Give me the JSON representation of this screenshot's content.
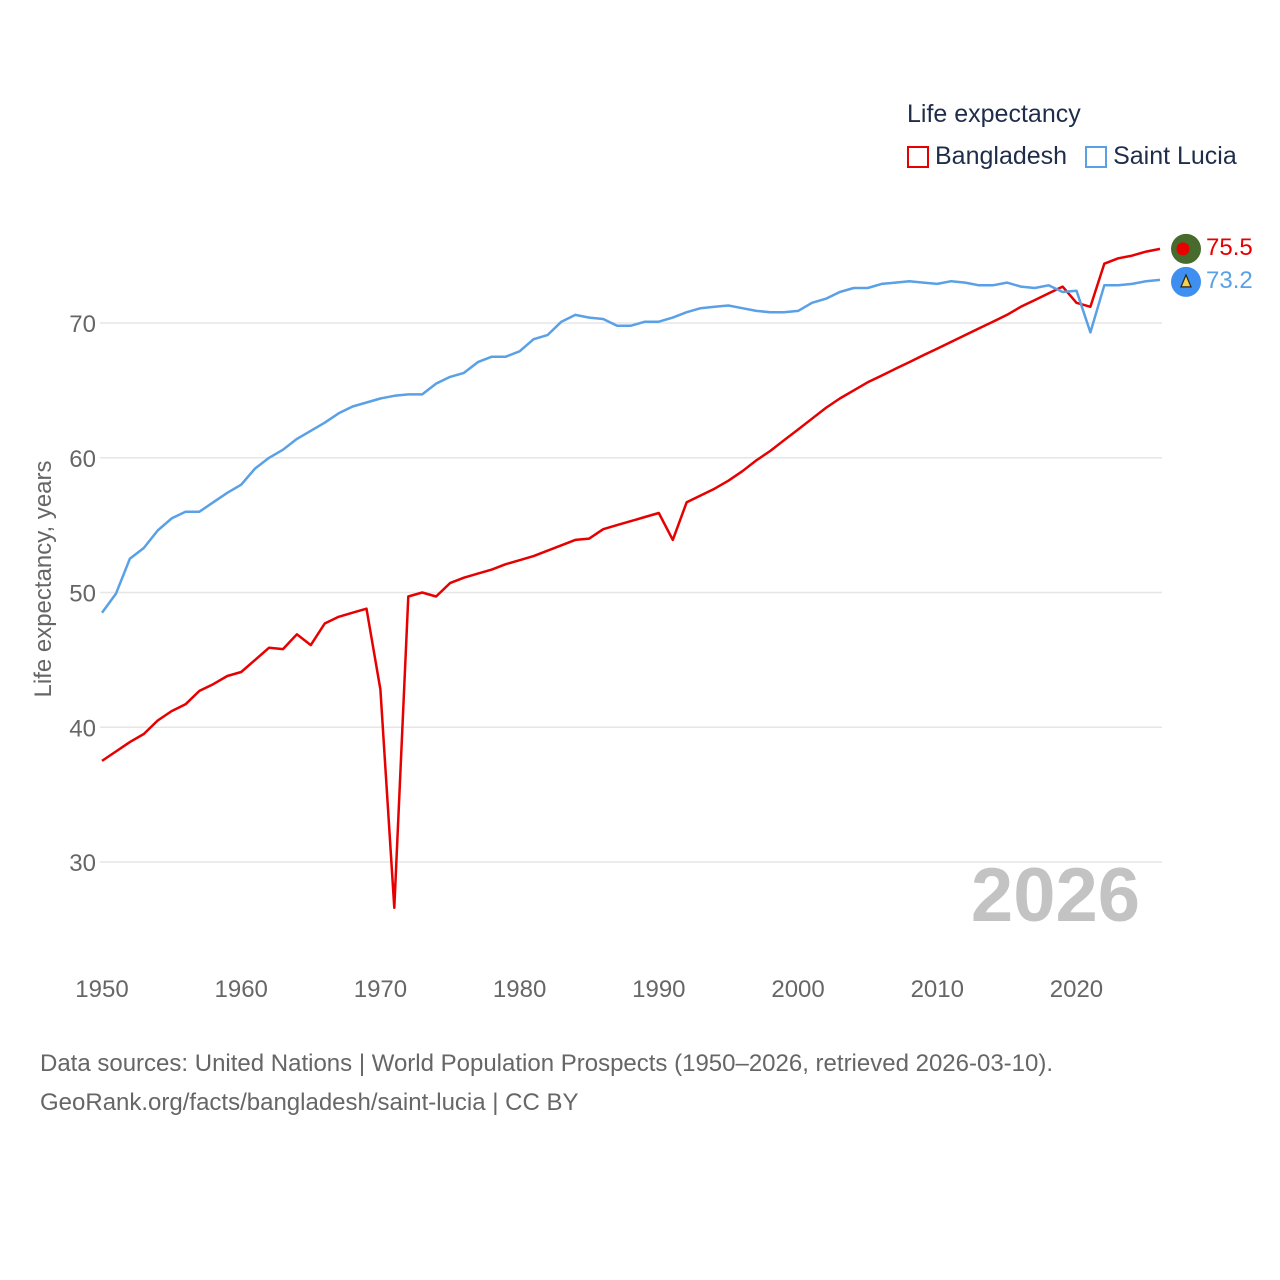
{
  "legend": {
    "title": "Life expectancy",
    "items": [
      {
        "name": "Bangladesh",
        "color": "#e60000"
      },
      {
        "name": "Saint Lucia",
        "color": "#5aa0e6"
      }
    ]
  },
  "current_year": "2026",
  "end_labels": {
    "bangladesh": "75.5",
    "saint_lucia": "73.2"
  },
  "footer": {
    "line1": "Data sources: United Nations | World Population Prospects (1950–2026, retrieved 2026-03-10).",
    "line2": "GeoRank.org/facts/bangladesh/saint-lucia | CC BY"
  },
  "chart_data": {
    "type": "line",
    "title": "Life expectancy",
    "xlabel": "",
    "ylabel": "Life expectancy, years",
    "xlim": [
      1950,
      2026
    ],
    "ylim": [
      25,
      78
    ],
    "x_ticks": [
      1950,
      1960,
      1970,
      1980,
      1990,
      2000,
      2010,
      2020
    ],
    "y_ticks": [
      30,
      40,
      50,
      60,
      70
    ],
    "grid": true,
    "x": [
      1950,
      1951,
      1952,
      1953,
      1954,
      1955,
      1956,
      1957,
      1958,
      1959,
      1960,
      1961,
      1962,
      1963,
      1964,
      1965,
      1966,
      1967,
      1968,
      1969,
      1970,
      1971,
      1972,
      1973,
      1974,
      1975,
      1976,
      1977,
      1978,
      1979,
      1980,
      1981,
      1982,
      1983,
      1984,
      1985,
      1986,
      1987,
      1988,
      1989,
      1990,
      1991,
      1992,
      1993,
      1994,
      1995,
      1996,
      1997,
      1998,
      1999,
      2000,
      2001,
      2002,
      2003,
      2004,
      2005,
      2006,
      2007,
      2008,
      2009,
      2010,
      2011,
      2012,
      2013,
      2014,
      2015,
      2016,
      2017,
      2018,
      2019,
      2020,
      2021,
      2022,
      2023,
      2024,
      2025,
      2026
    ],
    "series": [
      {
        "name": "Bangladesh",
        "color": "#e60000",
        "values": [
          37.5,
          38.2,
          38.9,
          39.5,
          40.5,
          41.2,
          41.7,
          42.7,
          43.2,
          43.8,
          44.1,
          45.0,
          45.9,
          45.8,
          46.9,
          46.1,
          47.7,
          48.2,
          48.5,
          48.8,
          42.8,
          26.6,
          49.7,
          50.0,
          49.7,
          50.7,
          51.1,
          51.4,
          51.7,
          52.1,
          52.4,
          52.7,
          53.1,
          53.5,
          53.9,
          54.0,
          54.7,
          55.0,
          55.3,
          55.6,
          55.9,
          53.9,
          56.7,
          57.2,
          57.7,
          58.3,
          59.0,
          59.8,
          60.5,
          61.3,
          62.1,
          62.9,
          63.7,
          64.4,
          65.0,
          65.6,
          66.1,
          66.6,
          67.1,
          67.6,
          68.1,
          68.6,
          69.1,
          69.6,
          70.1,
          70.6,
          71.2,
          71.7,
          72.2,
          72.7,
          71.5,
          71.2,
          74.4,
          74.8,
          75.0,
          75.3,
          75.5
        ]
      },
      {
        "name": "Saint Lucia",
        "color": "#5aa0e6",
        "values": [
          48.5,
          49.9,
          52.5,
          53.3,
          54.6,
          55.5,
          56.0,
          56.0,
          56.7,
          57.4,
          58.0,
          59.2,
          60.0,
          60.6,
          61.4,
          62.0,
          62.6,
          63.3,
          63.8,
          64.1,
          64.4,
          64.6,
          64.7,
          64.7,
          65.5,
          66.0,
          66.3,
          67.1,
          67.5,
          67.5,
          67.9,
          68.8,
          69.1,
          70.1,
          70.6,
          70.4,
          70.3,
          69.8,
          69.8,
          70.1,
          70.1,
          70.4,
          70.8,
          71.1,
          71.2,
          71.3,
          71.1,
          70.9,
          70.8,
          70.8,
          70.9,
          71.5,
          71.8,
          72.3,
          72.6,
          72.6,
          72.9,
          73.0,
          73.1,
          73.0,
          72.9,
          73.1,
          73.0,
          72.8,
          72.8,
          73.0,
          72.7,
          72.6,
          72.8,
          72.3,
          72.4,
          69.3,
          72.8,
          72.8,
          72.9,
          73.1,
          73.2
        ]
      }
    ]
  }
}
